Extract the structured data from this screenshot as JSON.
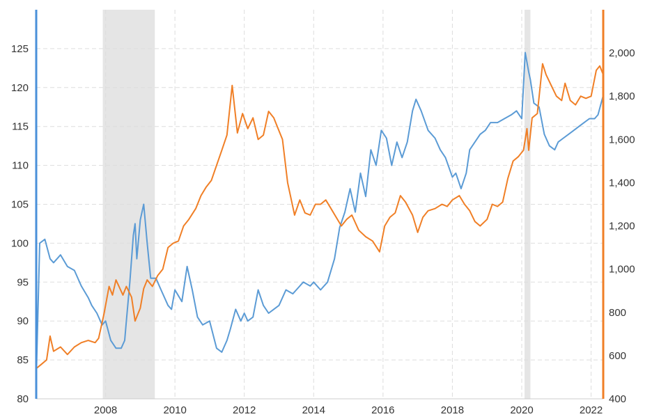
{
  "chart_data": {
    "type": "line",
    "title": "",
    "xlabel": "",
    "ylabel": "",
    "y2label": "",
    "grid": true,
    "legend": "none",
    "x_range": [
      2006.0,
      2022.35
    ],
    "x_ticks": [
      2008,
      2010,
      2012,
      2014,
      2016,
      2018,
      2020,
      2022
    ],
    "x_tick_labels": [
      "2008",
      "2010",
      "2012",
      "2014",
      "2016",
      "2018",
      "2020",
      "2022"
    ],
    "y_left": {
      "range": [
        80,
        130
      ],
      "ticks": [
        80,
        85,
        90,
        95,
        100,
        105,
        110,
        115,
        120,
        125
      ],
      "tick_labels": [
        "80",
        "85",
        "90",
        "95",
        "100",
        "105",
        "110",
        "115",
        "120",
        "125"
      ],
      "color": "#4a90d9"
    },
    "y_right": {
      "range": [
        400,
        2200
      ],
      "ticks": [
        400,
        600,
        800,
        1000,
        1200,
        1400,
        1600,
        1800,
        2000
      ],
      "tick_labels": [
        "400",
        "600",
        "800",
        "1,000",
        "1,200",
        "1,400",
        "1,600",
        "1,800",
        "2,000"
      ],
      "color": "#f07f26"
    },
    "recessions": [
      [
        2007.92,
        2009.42
      ],
      [
        2020.08,
        2020.25
      ]
    ],
    "series": [
      {
        "axis": "left",
        "color": "#5b9bd5",
        "x": [
          2006.0,
          2006.1,
          2006.25,
          2006.4,
          2006.5,
          2006.7,
          2006.9,
          2007.1,
          2007.3,
          2007.5,
          2007.6,
          2007.75,
          2007.9,
          2008.0,
          2008.15,
          2008.3,
          2008.45,
          2008.55,
          2008.6,
          2008.7,
          2008.8,
          2008.85,
          2008.9,
          2009.0,
          2009.1,
          2009.2,
          2009.3,
          2009.45,
          2009.6,
          2009.8,
          2009.9,
          2010.0,
          2010.2,
          2010.35,
          2010.5,
          2010.65,
          2010.8,
          2011.0,
          2011.2,
          2011.35,
          2011.5,
          2011.6,
          2011.75,
          2011.9,
          2012.0,
          2012.1,
          2012.25,
          2012.4,
          2012.55,
          2012.7,
          2012.85,
          2013.0,
          2013.2,
          2013.4,
          2013.5,
          2013.7,
          2013.9,
          2014.0,
          2014.2,
          2014.4,
          2014.6,
          2014.75,
          2014.9,
          2015.05,
          2015.2,
          2015.35,
          2015.5,
          2015.65,
          2015.8,
          2015.95,
          2016.1,
          2016.25,
          2016.4,
          2016.55,
          2016.7,
          2016.85,
          2016.95,
          2017.1,
          2017.3,
          2017.5,
          2017.65,
          2017.8,
          2018.0,
          2018.1,
          2018.25,
          2018.4,
          2018.5,
          2018.65,
          2018.8,
          2018.95,
          2019.1,
          2019.3,
          2019.5,
          2019.7,
          2019.85,
          2020.0,
          2020.1,
          2020.2,
          2020.25,
          2020.35,
          2020.5,
          2020.65,
          2020.8,
          2020.95,
          2021.05,
          2021.2,
          2021.35,
          2021.5,
          2021.65,
          2021.8,
          2021.95,
          2022.1,
          2022.2,
          2022.35
        ],
        "values": [
          82.5,
          100,
          100.5,
          98,
          97.5,
          98.5,
          97,
          96.5,
          94.5,
          93,
          92,
          91,
          89.5,
          90,
          87.5,
          86.5,
          86.5,
          87.5,
          90,
          95,
          101,
          102.5,
          98,
          103,
          105,
          100,
          95.5,
          95.5,
          94,
          92,
          91.5,
          94,
          92.5,
          97,
          94,
          90.5,
          89.5,
          90,
          86.5,
          86,
          87.5,
          89,
          91.5,
          90,
          91,
          90,
          90.5,
          94,
          92,
          91,
          91.5,
          92,
          94,
          93.5,
          94,
          95,
          94.5,
          95,
          94,
          95,
          98,
          102,
          104,
          107,
          104,
          109,
          106,
          112,
          110,
          114.5,
          113.5,
          110,
          113,
          111,
          113,
          117,
          118.5,
          117,
          114.5,
          113.5,
          112,
          111,
          108.5,
          109,
          107,
          109,
          112,
          113,
          114,
          114.5,
          115.5,
          115.5,
          116,
          116.5,
          117,
          116,
          124.5,
          122,
          121,
          118,
          117.5,
          114,
          112.5,
          112,
          113,
          113.5,
          114,
          114.5,
          115,
          115.5,
          116,
          116,
          116.5,
          119
        ]
      },
      {
        "axis": "right",
        "color": "#f07f26",
        "x": [
          2006.0,
          2006.15,
          2006.3,
          2006.4,
          2006.5,
          2006.7,
          2006.9,
          2007.1,
          2007.3,
          2007.5,
          2007.7,
          2007.8,
          2007.95,
          2008.1,
          2008.2,
          2008.3,
          2008.5,
          2008.6,
          2008.75,
          2008.85,
          2009.0,
          2009.1,
          2009.2,
          2009.35,
          2009.5,
          2009.65,
          2009.8,
          2009.95,
          2010.1,
          2010.25,
          2010.4,
          2010.6,
          2010.75,
          2010.9,
          2011.05,
          2011.2,
          2011.35,
          2011.5,
          2011.65,
          2011.8,
          2011.95,
          2012.1,
          2012.25,
          2012.4,
          2012.55,
          2012.7,
          2012.85,
          2012.95,
          2013.1,
          2013.25,
          2013.45,
          2013.6,
          2013.75,
          2013.9,
          2014.05,
          2014.2,
          2014.35,
          2014.5,
          2014.65,
          2014.8,
          2014.95,
          2015.1,
          2015.3,
          2015.5,
          2015.7,
          2015.9,
          2016.05,
          2016.2,
          2016.35,
          2016.5,
          2016.65,
          2016.85,
          2017.0,
          2017.15,
          2017.3,
          2017.5,
          2017.7,
          2017.85,
          2018.0,
          2018.2,
          2018.35,
          2018.5,
          2018.65,
          2018.8,
          2019.0,
          2019.15,
          2019.3,
          2019.45,
          2019.6,
          2019.75,
          2019.9,
          2020.05,
          2020.15,
          2020.2,
          2020.3,
          2020.45,
          2020.6,
          2020.7,
          2020.85,
          2021.0,
          2021.15,
          2021.25,
          2021.4,
          2021.55,
          2021.7,
          2021.85,
          2022.0,
          2022.15,
          2022.25,
          2022.35
        ],
        "values": [
          540,
          560,
          580,
          690,
          620,
          640,
          605,
          640,
          660,
          670,
          660,
          680,
          790,
          920,
          880,
          950,
          880,
          920,
          870,
          760,
          820,
          910,
          950,
          920,
          970,
          1000,
          1100,
          1120,
          1130,
          1200,
          1230,
          1280,
          1340,
          1380,
          1410,
          1480,
          1550,
          1620,
          1850,
          1630,
          1720,
          1650,
          1700,
          1600,
          1620,
          1730,
          1700,
          1660,
          1600,
          1400,
          1250,
          1320,
          1260,
          1250,
          1300,
          1300,
          1320,
          1280,
          1240,
          1200,
          1230,
          1250,
          1180,
          1150,
          1130,
          1080,
          1200,
          1240,
          1260,
          1340,
          1310,
          1250,
          1170,
          1240,
          1270,
          1280,
          1300,
          1290,
          1320,
          1340,
          1300,
          1270,
          1220,
          1200,
          1230,
          1300,
          1290,
          1310,
          1420,
          1500,
          1520,
          1550,
          1650,
          1550,
          1700,
          1720,
          1950,
          1900,
          1850,
          1800,
          1780,
          1860,
          1780,
          1760,
          1800,
          1790,
          1800,
          1920,
          1940,
          1900
        ]
      }
    ]
  }
}
